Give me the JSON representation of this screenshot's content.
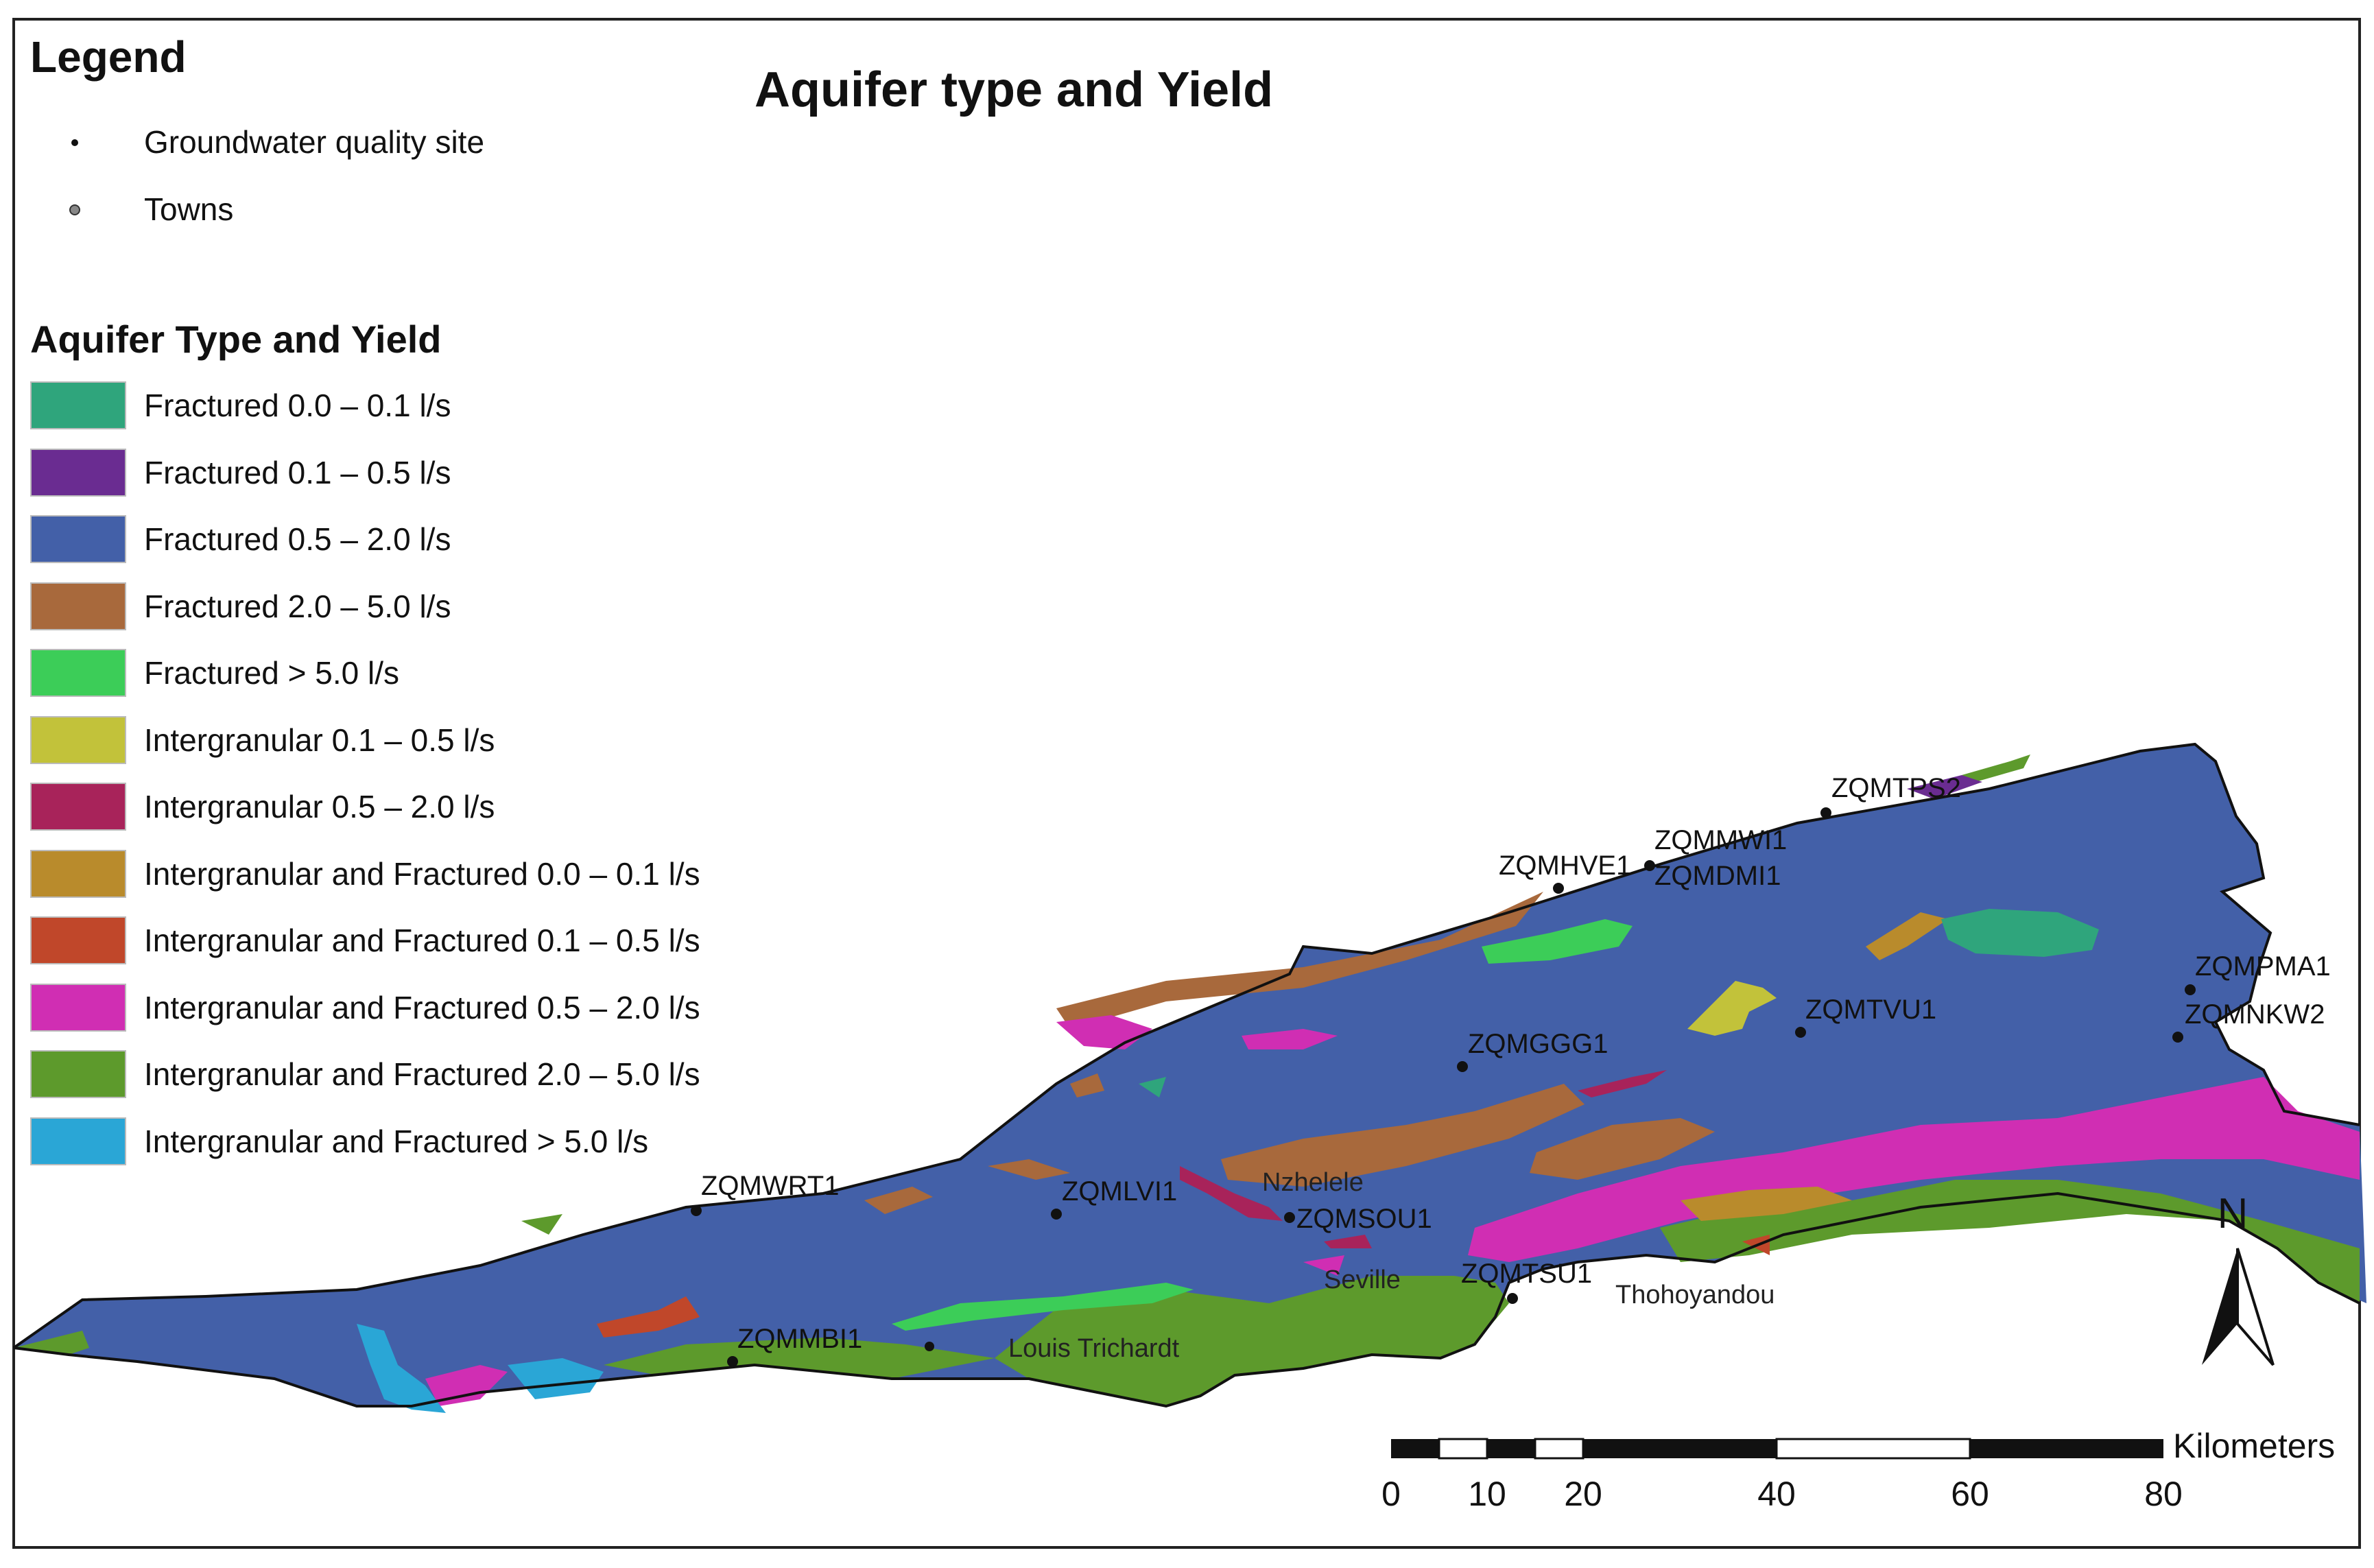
{
  "title": "Aquifer type and Yield",
  "legend": {
    "heading": "Legend",
    "points": [
      {
        "label": "Groundwater quality site",
        "symbol": "small-black-dot"
      },
      {
        "label": "Towns",
        "symbol": "grey-dot"
      }
    ]
  },
  "aquifer_legend": {
    "heading": "Aquifer Type and Yield",
    "classes": [
      {
        "label": "Fractured 0.0 – 0.1 l/s",
        "color": "#2fa57c"
      },
      {
        "label": "Fractured 0.1 – 0.5  l/s",
        "color": "#6a2c91"
      },
      {
        "label": "Fractured 0.5 – 2.0 l/s",
        "color": "#4360a8"
      },
      {
        "label": "Fractured 2.0 – 5.0 l/s",
        "color": "#a8693c"
      },
      {
        "label": "Fractured > 5.0 l/s",
        "color": "#3ccd58"
      },
      {
        "label": "Intergranular 0.1 – 0.5 l/s",
        "color": "#c2c23a"
      },
      {
        "label": "Intergranular 0.5 – 2.0 l/s",
        "color": "#a8235a"
      },
      {
        "label": "Intergranular and Fractured 0.0 – 0.1 l/s",
        "color": "#b98b2c"
      },
      {
        "label": "Intergranular and Fractured 0.1 – 0.5 l/s",
        "color": "#c0472a"
      },
      {
        "label": "Intergranular and Fractured 0.5 – 2.0 l/s",
        "color": "#d02eb3"
      },
      {
        "label": "Intergranular and Fractured 2.0 – 5.0 l/s",
        "color": "#5d9a2c"
      },
      {
        "label": "Intergranular and Fractured > 5.0 l/s",
        "color": "#2aa6d6"
      }
    ]
  },
  "sites": [
    "ZQMWRT1",
    "ZQMLVI1",
    "ZQMSOU1",
    "ZQMMBI1",
    "ZQMTSU1",
    "ZQMGGG1",
    "ZQMHVE1",
    "ZQMMWI1",
    "ZQMDMI1",
    "ZQMTPS2",
    "ZQMTVU1",
    "ZQMPMA1",
    "ZQMNKW2"
  ],
  "towns": [
    "Nzhelele",
    "Seville",
    "Louis Trichardt",
    "Thohoyandou"
  ],
  "north_arrow": {
    "label": "N",
    "icon": "north-arrow-icon"
  },
  "scale_bar": {
    "unit": "Kilometers",
    "ticks": [
      "0",
      "10",
      "20",
      "40",
      "60",
      "80"
    ]
  }
}
